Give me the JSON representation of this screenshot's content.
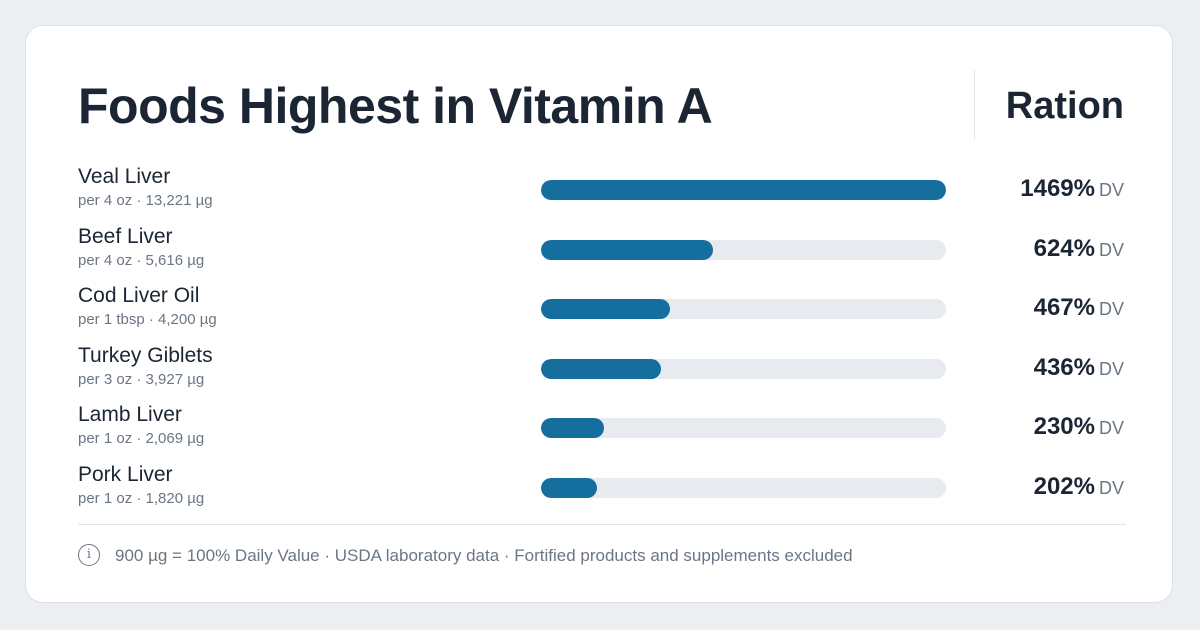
{
  "header": {
    "title": "Foods Highest in Vitamin A",
    "brand": "Ration"
  },
  "footer": {
    "info_icon": "i",
    "note": "900 µg = 100% Daily Value · USDA laboratory data · Fortified products and supplements excluded"
  },
  "colors": {
    "bar_fill": "#146e9e",
    "bar_track": "#e7ebef",
    "text_primary": "#1b2534",
    "text_muted": "#6b7684"
  },
  "chart_data": {
    "type": "bar",
    "orientation": "horizontal",
    "unit_label": "DV",
    "xlim": [
      0,
      1469
    ],
    "items": [
      {
        "name": "Veal Liver",
        "serving": "per 4 oz · 13,221 µg",
        "value": 1469,
        "display": "1469%"
      },
      {
        "name": "Beef Liver",
        "serving": "per 4 oz · 5,616 µg",
        "value": 624,
        "display": "624%"
      },
      {
        "name": "Cod Liver Oil",
        "serving": "per 1 tbsp · 4,200 µg",
        "value": 467,
        "display": "467%"
      },
      {
        "name": "Turkey Giblets",
        "serving": "per 3 oz · 3,927 µg",
        "value": 436,
        "display": "436%"
      },
      {
        "name": "Lamb Liver",
        "serving": "per 1 oz · 2,069 µg",
        "value": 230,
        "display": "230%"
      },
      {
        "name": "Pork Liver",
        "serving": "per 1 oz · 1,820 µg",
        "value": 202,
        "display": "202%"
      }
    ]
  }
}
